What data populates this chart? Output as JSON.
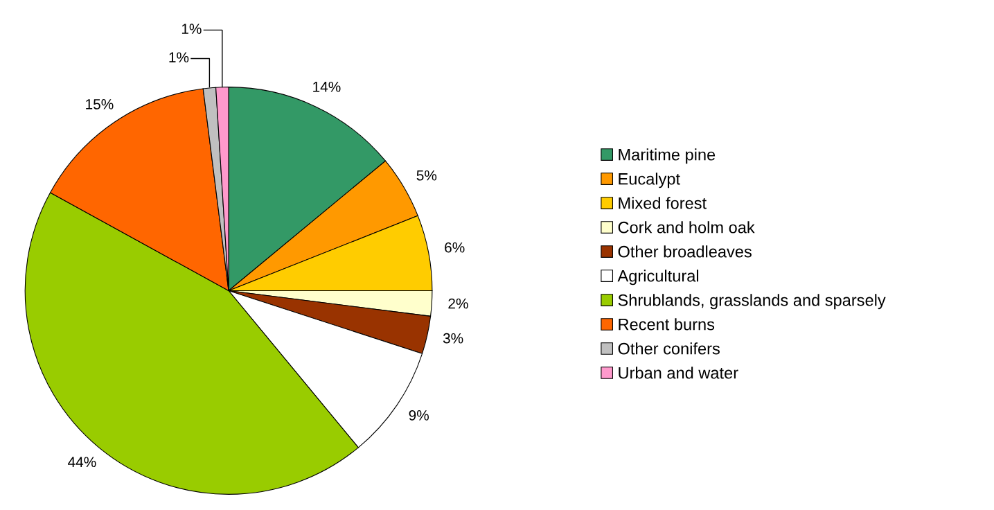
{
  "chart_data": {
    "type": "pie",
    "categories": [
      "Maritime pine",
      "Eucalypt",
      "Mixed forest",
      "Cork and holm oak",
      "Other broadleaves",
      "Agricultural",
      "Shrublands, grasslands and sparsely",
      "Recent burns",
      "Other conifers",
      "Urban and water"
    ],
    "values": [
      14,
      5,
      6,
      2,
      3,
      9,
      44,
      15,
      1,
      1
    ],
    "colors": [
      "#339966",
      "#ff9900",
      "#ffcc00",
      "#ffffcc",
      "#993300",
      "#ffffff",
      "#99cc00",
      "#ff6600",
      "#c0c0c0",
      "#ff99cc"
    ],
    "value_labels": [
      "14%",
      "5%",
      "6%",
      "2%",
      "3%",
      "9%",
      "44%",
      "15%",
      "1%",
      "1%"
    ],
    "legend": "right"
  }
}
